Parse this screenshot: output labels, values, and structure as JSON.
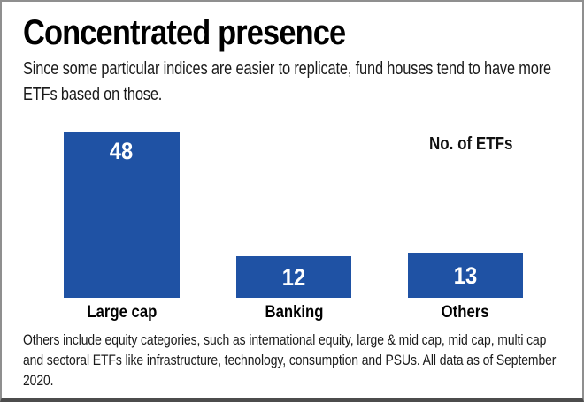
{
  "header": {
    "title": "Concentrated presence",
    "subtitle": "Since some particular indices are easier to replicate, fund houses tend to have more ETFs based on those."
  },
  "chart_data": {
    "type": "bar",
    "title": "Concentrated presence",
    "unit_label": "No. of ETFs",
    "categories": [
      "Large cap",
      "Banking",
      "Others"
    ],
    "values": [
      48,
      12,
      13
    ],
    "ylim": [
      0,
      48
    ],
    "grid": false,
    "legend": "none",
    "bar_color": "#1f52a4",
    "value_label_color": "#ffffff",
    "category_label_color": "#000000"
  },
  "footer": {
    "note": "Others include equity categories, such as international equity, large & mid cap, mid cap, multi cap and sectoral ETFs like infrastructure, technology, consumption and PSUs. All data as of September 2020."
  }
}
